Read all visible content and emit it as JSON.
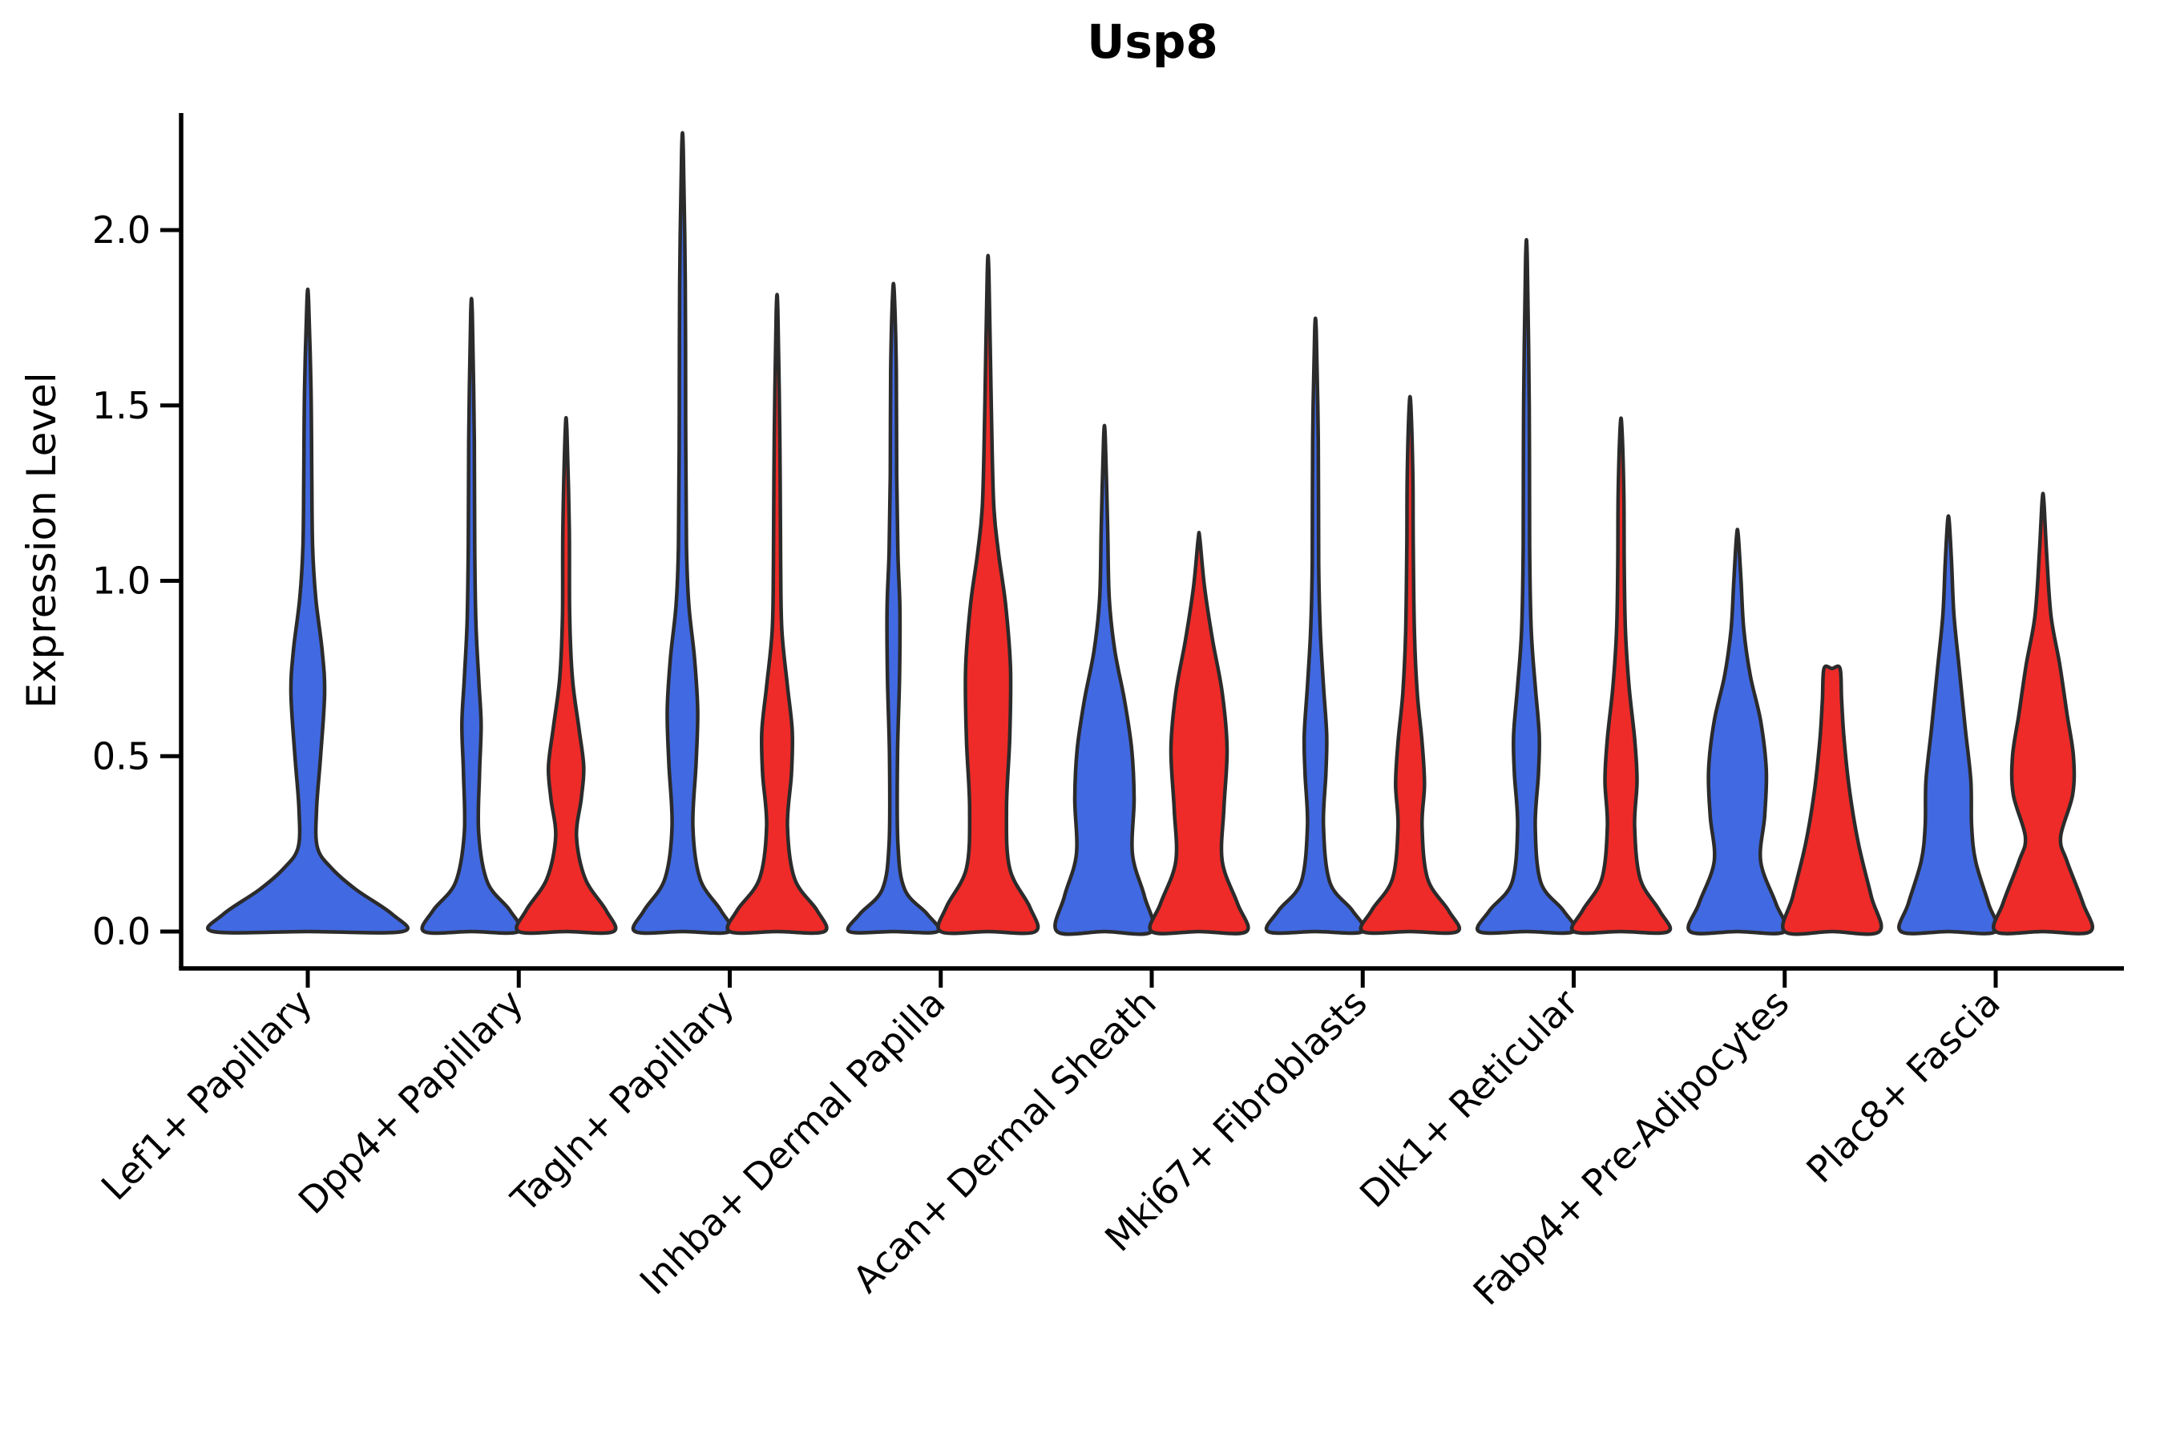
{
  "title": "Usp8",
  "y_axis": {
    "label": "Expression Level"
  },
  "chart_data": {
    "type": "violin",
    "title": "Usp8",
    "xlabel": "",
    "ylabel": "Expression Level",
    "ylim": [
      -0.1,
      2.33
    ],
    "grid": false,
    "legend": "none",
    "yticks": [
      {
        "value": 0.0,
        "label": "0.0"
      },
      {
        "value": 0.5,
        "label": "0.5"
      },
      {
        "value": 1.0,
        "label": "1.0"
      },
      {
        "value": 1.5,
        "label": "1.5"
      },
      {
        "value": 2.0,
        "label": "2.0"
      }
    ],
    "categories": [
      "Lef1+ Papillary",
      "Dpp4+ Papillary",
      "Tagln+ Papillary",
      "Inhba+ Dermal Papilla",
      "Acan+ Dermal Sheath",
      "Mki67+ Fibroblasts",
      "Dlk1+ Reticular",
      "Fabp4+ Pre-Adipocytes",
      "Plac8+ Fascia"
    ],
    "palette": {
      "blue": "#4169E1",
      "red": "#EE2B28",
      "outline": "#2b2b2b"
    },
    "groups": [
      {
        "category": "Lef1+ Papillary",
        "violins": [
          {
            "series": "blue",
            "side": "center",
            "max": 1.8,
            "flat_top": false,
            "profile": [
              [
                0,
                118
              ],
              [
                0.05,
                105
              ],
              [
                0.12,
                60
              ],
              [
                0.18,
                30
              ],
              [
                0.24,
                12
              ],
              [
                0.35,
                11
              ],
              [
                0.5,
                16
              ],
              [
                0.68,
                21
              ],
              [
                0.8,
                18
              ],
              [
                0.95,
                10
              ],
              [
                1.1,
                6
              ],
              [
                1.3,
                5
              ],
              [
                1.55,
                4
              ],
              [
                1.8,
                1
              ]
            ]
          }
        ]
      },
      {
        "category": "Dpp4+ Papillary",
        "violins": [
          {
            "series": "blue",
            "side": "left",
            "max": 1.76,
            "flat_top": false,
            "profile": [
              [
                0,
                59
              ],
              [
                0.06,
                48
              ],
              [
                0.14,
                20
              ],
              [
                0.28,
                9
              ],
              [
                0.45,
                10
              ],
              [
                0.59,
                12
              ],
              [
                0.72,
                9
              ],
              [
                0.88,
                5.5
              ],
              [
                1.1,
                4
              ],
              [
                1.4,
                3.5
              ],
              [
                1.76,
                1
              ]
            ]
          },
          {
            "series": "red",
            "side": "right",
            "max": 1.43,
            "flat_top": false,
            "profile": [
              [
                0,
                59
              ],
              [
                0.06,
                50
              ],
              [
                0.15,
                24
              ],
              [
                0.27,
                13
              ],
              [
                0.38,
                19
              ],
              [
                0.47,
                22
              ],
              [
                0.58,
                16
              ],
              [
                0.72,
                8
              ],
              [
                0.9,
                4.5
              ],
              [
                1.15,
                4
              ],
              [
                1.43,
                1
              ]
            ]
          }
        ]
      },
      {
        "category": "Tagln+ Papillary",
        "violins": [
          {
            "series": "blue",
            "side": "left",
            "max": 2.23,
            "flat_top": false,
            "profile": [
              [
                0,
                59
              ],
              [
                0.06,
                48
              ],
              [
                0.15,
                22
              ],
              [
                0.3,
                13
              ],
              [
                0.48,
                17
              ],
              [
                0.63,
                19
              ],
              [
                0.78,
                15
              ],
              [
                0.93,
                8
              ],
              [
                1.1,
                5
              ],
              [
                1.45,
                4
              ],
              [
                1.85,
                3.5
              ],
              [
                2.23,
                1
              ]
            ]
          },
          {
            "series": "red",
            "side": "right",
            "max": 1.77,
            "flat_top": false,
            "profile": [
              [
                0,
                59
              ],
              [
                0.06,
                50
              ],
              [
                0.15,
                22
              ],
              [
                0.3,
                13
              ],
              [
                0.45,
                18
              ],
              [
                0.57,
                19
              ],
              [
                0.7,
                13
              ],
              [
                0.86,
                6
              ],
              [
                1.05,
                4.5
              ],
              [
                1.4,
                3.5
              ],
              [
                1.77,
                1
              ]
            ]
          }
        ]
      },
      {
        "category": "Inhba+ Dermal Papilla",
        "violins": [
          {
            "series": "blue",
            "side": "left",
            "max": 1.82,
            "flat_top": false,
            "profile": [
              [
                0,
                55
              ],
              [
                0.05,
                42
              ],
              [
                0.12,
                14
              ],
              [
                0.25,
                5.5
              ],
              [
                0.5,
                5
              ],
              [
                0.72,
                7.5
              ],
              [
                0.92,
                8
              ],
              [
                1.08,
                5.5
              ],
              [
                1.3,
                4
              ],
              [
                1.6,
                3.5
              ],
              [
                1.82,
                1
              ]
            ]
          },
          {
            "series": "red",
            "side": "right",
            "max": 1.88,
            "flat_top": false,
            "profile": [
              [
                0,
                59
              ],
              [
                0.07,
                52
              ],
              [
                0.18,
                27
              ],
              [
                0.35,
                23
              ],
              [
                0.55,
                27
              ],
              [
                0.75,
                28
              ],
              [
                0.93,
                22
              ],
              [
                1.08,
                13
              ],
              [
                1.22,
                7
              ],
              [
                1.5,
                4
              ],
              [
                1.88,
                1
              ]
            ]
          }
        ]
      },
      {
        "category": "Acan+ Dermal Sheath",
        "violins": [
          {
            "series": "blue",
            "side": "left",
            "max": 1.41,
            "flat_top": false,
            "profile": [
              [
                0,
                59
              ],
              [
                0.1,
                50
              ],
              [
                0.22,
                35
              ],
              [
                0.38,
                37
              ],
              [
                0.52,
                34
              ],
              [
                0.66,
                25
              ],
              [
                0.8,
                13
              ],
              [
                0.95,
                6
              ],
              [
                1.15,
                4
              ],
              [
                1.41,
                1
              ]
            ]
          },
          {
            "series": "red",
            "side": "right",
            "max": 1.12,
            "flat_top": false,
            "profile": [
              [
                0,
                59
              ],
              [
                0.08,
                48
              ],
              [
                0.2,
                29
              ],
              [
                0.35,
                31
              ],
              [
                0.52,
                35
              ],
              [
                0.68,
                29
              ],
              [
                0.83,
                17
              ],
              [
                0.98,
                7
              ],
              [
                1.12,
                1
              ]
            ]
          }
        ]
      },
      {
        "category": "Mki67+ Fibroblasts",
        "violins": [
          {
            "series": "blue",
            "side": "left",
            "max": 1.71,
            "flat_top": false,
            "profile": [
              [
                0,
                59
              ],
              [
                0.06,
                46
              ],
              [
                0.14,
                18
              ],
              [
                0.3,
                10
              ],
              [
                0.45,
                13
              ],
              [
                0.56,
                14
              ],
              [
                0.7,
                10
              ],
              [
                0.86,
                6
              ],
              [
                1.05,
                4
              ],
              [
                1.4,
                3.5
              ],
              [
                1.71,
                1
              ]
            ]
          },
          {
            "series": "red",
            "side": "right",
            "max": 1.5,
            "flat_top": false,
            "profile": [
              [
                0,
                59
              ],
              [
                0.06,
                48
              ],
              [
                0.15,
                22
              ],
              [
                0.3,
                15
              ],
              [
                0.42,
                18
              ],
              [
                0.54,
                15
              ],
              [
                0.68,
                9
              ],
              [
                0.85,
                5.5
              ],
              [
                1.1,
                4
              ],
              [
                1.3,
                3.5
              ],
              [
                1.5,
                1
              ]
            ]
          }
        ]
      },
      {
        "category": "Dlk1+ Reticular",
        "violins": [
          {
            "series": "blue",
            "side": "left",
            "max": 1.92,
            "flat_top": false,
            "profile": [
              [
                0,
                59
              ],
              [
                0.06,
                46
              ],
              [
                0.14,
                18
              ],
              [
                0.3,
                11
              ],
              [
                0.45,
                15
              ],
              [
                0.56,
                16
              ],
              [
                0.7,
                11
              ],
              [
                0.86,
                6
              ],
              [
                1.1,
                4
              ],
              [
                1.5,
                3.5
              ],
              [
                1.92,
                1
              ]
            ]
          },
          {
            "series": "red",
            "side": "right",
            "max": 1.44,
            "flat_top": false,
            "profile": [
              [
                0,
                59
              ],
              [
                0.06,
                48
              ],
              [
                0.15,
                24
              ],
              [
                0.3,
                17
              ],
              [
                0.43,
                20
              ],
              [
                0.55,
                17
              ],
              [
                0.7,
                10
              ],
              [
                0.86,
                5.5
              ],
              [
                1.05,
                4
              ],
              [
                1.25,
                3.5
              ],
              [
                1.44,
                1
              ]
            ]
          }
        ]
      },
      {
        "category": "Fabp4+ Pre-Adipocytes",
        "violins": [
          {
            "series": "blue",
            "side": "left",
            "max": 1.13,
            "flat_top": false,
            "profile": [
              [
                0,
                59
              ],
              [
                0.08,
                48
              ],
              [
                0.2,
                29
              ],
              [
                0.33,
                34
              ],
              [
                0.46,
                36
              ],
              [
                0.6,
                29
              ],
              [
                0.73,
                16
              ],
              [
                0.86,
                8
              ],
              [
                1.0,
                4.5
              ],
              [
                1.13,
                1
              ]
            ]
          },
          {
            "series": "red",
            "side": "right",
            "max": 0.75,
            "flat_top": true,
            "profile": [
              [
                0,
                59
              ],
              [
                0.1,
                49
              ],
              [
                0.25,
                33
              ],
              [
                0.4,
                22
              ],
              [
                0.55,
                15
              ],
              [
                0.66,
                12
              ],
              [
                0.75,
                10
              ]
            ]
          }
        ]
      },
      {
        "category": "Plac8+ Fascia",
        "violins": [
          {
            "series": "blue",
            "side": "left",
            "max": 1.17,
            "flat_top": false,
            "profile": [
              [
                0,
                59
              ],
              [
                0.08,
                50
              ],
              [
                0.2,
                34
              ],
              [
                0.3,
                29
              ],
              [
                0.43,
                28
              ],
              [
                0.58,
                21
              ],
              [
                0.74,
                14
              ],
              [
                0.9,
                7
              ],
              [
                1.05,
                4
              ],
              [
                1.17,
                1
              ]
            ]
          },
          {
            "series": "red",
            "side": "right",
            "max": 1.23,
            "flat_top": false,
            "profile": [
              [
                0,
                59
              ],
              [
                0.08,
                50
              ],
              [
                0.2,
                30
              ],
              [
                0.27,
                22
              ],
              [
                0.39,
                37
              ],
              [
                0.5,
                38
              ],
              [
                0.62,
                30
              ],
              [
                0.76,
                21
              ],
              [
                0.9,
                10
              ],
              [
                1.08,
                4.5
              ],
              [
                1.23,
                1
              ]
            ]
          }
        ]
      }
    ]
  }
}
